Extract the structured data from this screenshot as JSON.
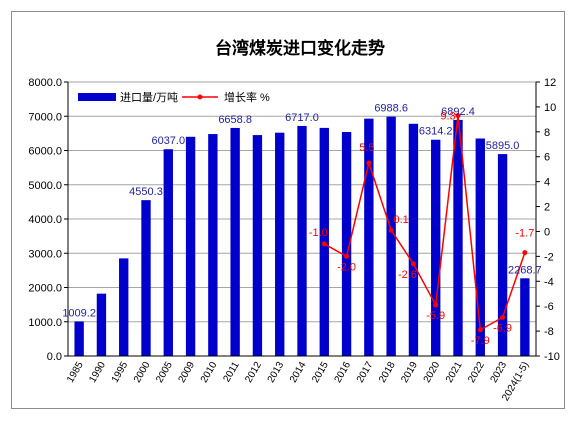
{
  "chart_data": {
    "type": "bar",
    "title": "台湾煤炭进口变化走势",
    "categories": [
      "1985",
      "1990",
      "1995",
      "2000",
      "2005",
      "2009",
      "2010",
      "2011",
      "2012",
      "2013",
      "2014",
      "2015",
      "2016",
      "2017",
      "2018",
      "2019",
      "2020",
      "2021",
      "2022",
      "2023",
      "2024(1-5)"
    ],
    "series": [
      {
        "name": "进口量/万吨",
        "type": "bar",
        "axis": "left",
        "color": "#0000cc",
        "values": [
          1009.2,
          1820,
          2850,
          4550.3,
          6037.0,
          6400,
          6480,
          6658.8,
          6450,
          6520,
          6717.0,
          6660,
          6540,
          6930,
          6988.6,
          6780,
          6314.2,
          6892.4,
          6350,
          5895.0,
          2268.7
        ],
        "data_labels": [
          "1009.2",
          "",
          "",
          "4550.3",
          "6037.0",
          "",
          "",
          "6658.8",
          "",
          "",
          "6717.0",
          "",
          "",
          "",
          "6988.6",
          "",
          "6314.2",
          "6892.4",
          "",
          "5895.0",
          "2268.7"
        ]
      },
      {
        "name": "增长率 %",
        "type": "line",
        "axis": "right",
        "color": "#ff0000",
        "values": [
          null,
          null,
          null,
          null,
          null,
          null,
          null,
          null,
          null,
          null,
          null,
          -1.0,
          -2.0,
          5.5,
          0.1,
          -2.6,
          -5.9,
          9.3,
          -7.9,
          -6.9,
          -1.7
        ],
        "data_labels": [
          "",
          "",
          "",
          "",
          "",
          "",
          "",
          "",
          "",
          "",
          "",
          "-1.0",
          "-2.0",
          "5.5",
          "0.1",
          "-2.6",
          "-5.9",
          "9.3",
          "-7.9",
          "-6.9",
          "-1.7"
        ]
      }
    ],
    "y_left": {
      "min": 0,
      "max": 8000,
      "step": 1000,
      "tick_labels": [
        "0.0",
        "1000.0",
        "2000.0",
        "3000.0",
        "4000.0",
        "5000.0",
        "6000.0",
        "7000.0",
        "8000.0"
      ]
    },
    "y_right": {
      "min": -10,
      "max": 12,
      "step": 2,
      "tick_labels": [
        "-10",
        "-8",
        "-6",
        "-4",
        "-2",
        "0",
        "2",
        "4",
        "6",
        "8",
        "10",
        "12"
      ]
    },
    "grid": true,
    "legend_position": "top-left"
  }
}
